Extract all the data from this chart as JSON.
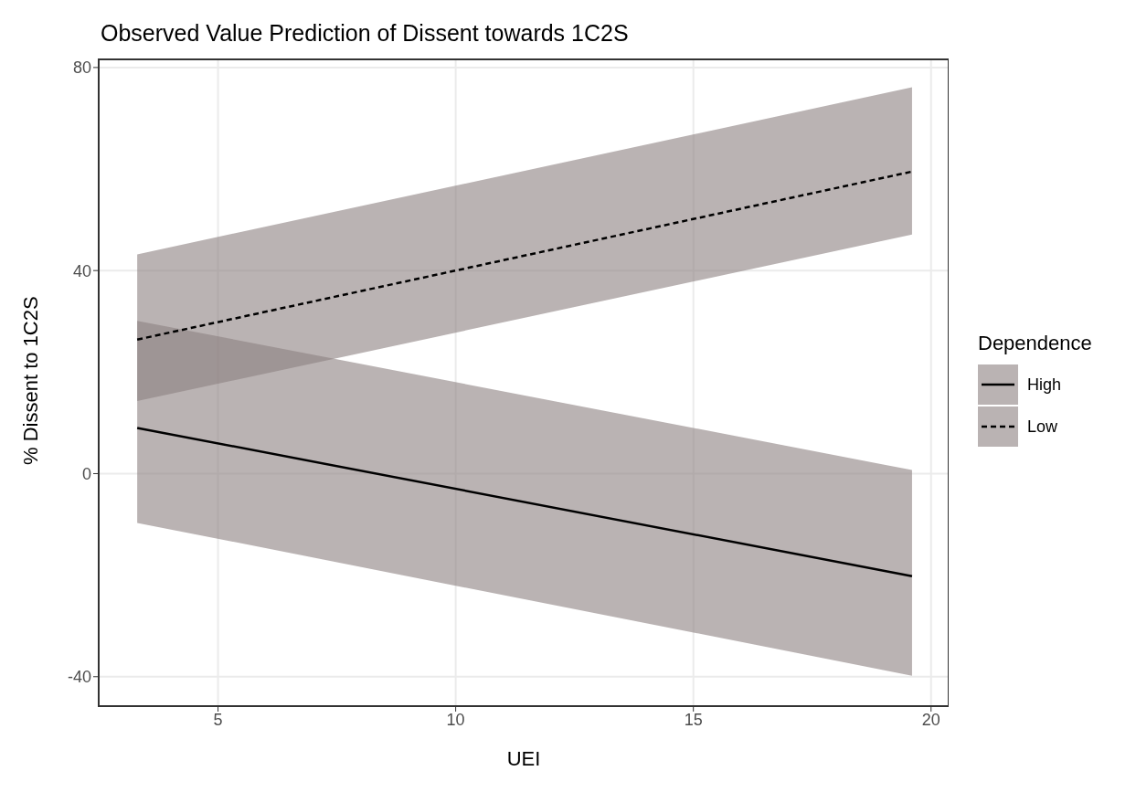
{
  "chart_data": {
    "type": "line",
    "title": "Observed Value Prediction of Dissent towards 1C2S",
    "xlabel": "UEI",
    "ylabel": "% Dissent to 1C2S",
    "legend_title": "Dependence",
    "xlim": [
      2.49,
      20.37
    ],
    "xticks": [
      5,
      10,
      15,
      20
    ],
    "ylim": [
      -45.8,
      81.6
    ],
    "yticks": [
      -40,
      0,
      40,
      80
    ],
    "grid": true,
    "legend": "right",
    "x": [
      3.3,
      19.6
    ],
    "series": [
      {
        "name": "High",
        "color": "#000000",
        "line_style": "solid",
        "values": [
          9.0,
          -20.2
        ],
        "lower": [
          -9.7,
          -39.8
        ],
        "upper": [
          30.1,
          0.7
        ]
      },
      {
        "name": "Low",
        "color": "#000000",
        "line_style": "dashed",
        "values": [
          26.4,
          59.5
        ],
        "lower": [
          14.3,
          47.1
        ],
        "upper": [
          43.2,
          76.1
        ]
      }
    ]
  }
}
